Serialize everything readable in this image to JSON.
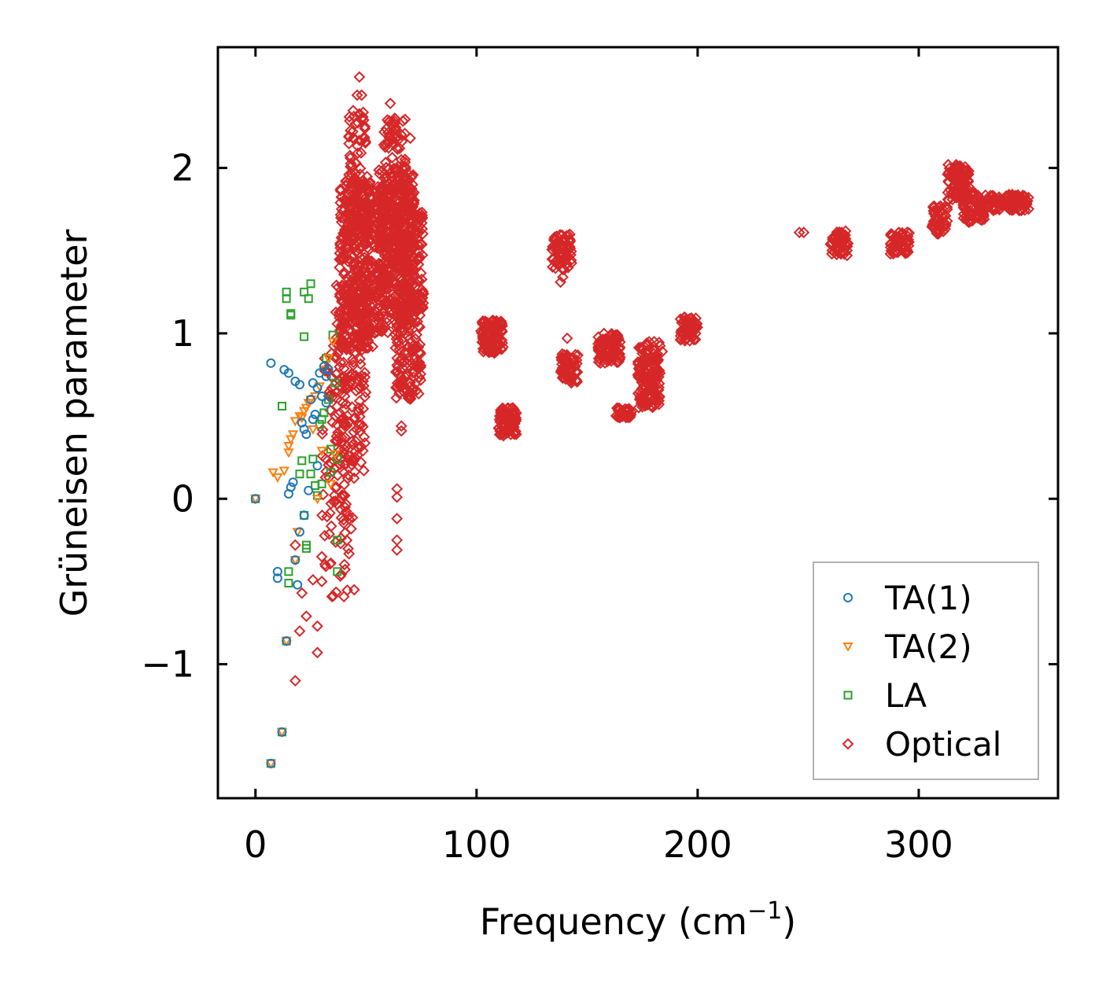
{
  "chart_data": {
    "type": "scatter",
    "title": "",
    "xlabel": "Frequency (cm",
    "xlabel_sup": "−1",
    "xlabel_end": ")",
    "ylabel": "Grüneisen parameter",
    "xlim": [
      -17,
      363
    ],
    "ylim": [
      -1.81,
      2.73
    ],
    "xticks": [
      0,
      100,
      200,
      300
    ],
    "xtick_labels": [
      "0",
      "100",
      "200",
      "300"
    ],
    "yticks": [
      -1,
      0,
      1,
      2
    ],
    "ytick_labels": [
      "−1",
      "0",
      "1",
      "2"
    ],
    "legend_position": "lower-right",
    "series": [
      {
        "name": "TA(1)",
        "marker": "circle",
        "color": "#1f77b4",
        "points": [
          [
            0,
            0
          ],
          [
            7,
            -1.6
          ],
          [
            7,
            0.82
          ],
          [
            10,
            -0.44
          ],
          [
            10,
            -0.48
          ],
          [
            13,
            0.78
          ],
          [
            15,
            0.76
          ],
          [
            15,
            0.03
          ],
          [
            16,
            0.07
          ],
          [
            17,
            0.1
          ],
          [
            18,
            0.71
          ],
          [
            19,
            -0.52
          ],
          [
            20,
            0.69
          ],
          [
            21,
            0.46
          ],
          [
            22,
            0.42
          ],
          [
            23,
            0.39
          ],
          [
            24,
            0.05
          ],
          [
            25,
            0.6
          ],
          [
            26,
            0.7
          ],
          [
            27,
            0.51
          ],
          [
            28,
            0.2
          ],
          [
            29,
            0.76
          ],
          [
            30,
            0.62
          ],
          [
            31,
            0.8
          ],
          [
            32,
            0.58
          ],
          [
            33,
            0.78
          ],
          [
            14,
            -0.86
          ],
          [
            12,
            -1.41
          ],
          [
            18,
            -0.37
          ],
          [
            20,
            -0.2
          ],
          [
            22,
            -0.1
          ],
          [
            26,
            0.48
          ],
          [
            28,
            0.67
          ],
          [
            32,
            0.74
          ]
        ]
      },
      {
        "name": "TA(2)",
        "marker": "triangle-down",
        "color": "#ff7f0e",
        "points": [
          [
            0,
            0
          ],
          [
            7,
            -1.6
          ],
          [
            12,
            -1.41
          ],
          [
            14,
            -0.86
          ],
          [
            8,
            0.16
          ],
          [
            10,
            0.13
          ],
          [
            13,
            0.17
          ],
          [
            15,
            0.32
          ],
          [
            15,
            0.28
          ],
          [
            16,
            0.36
          ],
          [
            17,
            0.39
          ],
          [
            18,
            0.47
          ],
          [
            19,
            -0.2
          ],
          [
            20,
            0.5
          ],
          [
            21,
            0.49
          ],
          [
            22,
            0.53
          ],
          [
            23,
            0.55
          ],
          [
            24,
            0.58
          ],
          [
            25,
            0.6
          ],
          [
            27,
            0.62
          ],
          [
            29,
            0.68
          ],
          [
            31,
            0.78
          ],
          [
            33,
            0.85
          ],
          [
            35,
            0.95
          ],
          [
            36,
            0.27
          ],
          [
            34,
            0.09
          ],
          [
            28,
            0
          ],
          [
            18,
            -0.37
          ],
          [
            30,
            0.29
          ],
          [
            26,
            0.42
          ]
        ]
      },
      {
        "name": "LA",
        "marker": "square",
        "color": "#2ca02c",
        "points": [
          [
            0,
            0
          ],
          [
            7,
            -1.6
          ],
          [
            12,
            -1.41
          ],
          [
            14,
            -0.86
          ],
          [
            12,
            0.56
          ],
          [
            14,
            1.25
          ],
          [
            14,
            1.21
          ],
          [
            15,
            -0.44
          ],
          [
            15,
            -0.51
          ],
          [
            16,
            1.12
          ],
          [
            16,
            1.11
          ],
          [
            20,
            0.15
          ],
          [
            21,
            0.23
          ],
          [
            22,
            0.98
          ],
          [
            22,
            1.25
          ],
          [
            22,
            -0.1
          ],
          [
            23,
            -0.28
          ],
          [
            23,
            -0.3
          ],
          [
            24,
            1.21
          ],
          [
            25,
            1.3
          ],
          [
            26,
            0.24
          ],
          [
            27,
            0.08
          ],
          [
            28,
            0.02
          ],
          [
            29,
            0.45
          ],
          [
            30,
            0.48
          ],
          [
            31,
            0.52
          ],
          [
            32,
            0.85
          ],
          [
            33,
            0.6
          ],
          [
            34,
            0.3
          ],
          [
            35,
            0.99
          ],
          [
            36,
            0.7
          ],
          [
            37,
            0.24
          ],
          [
            37,
            -0.25
          ],
          [
            37,
            -0.44
          ],
          [
            34,
            0.16
          ],
          [
            30,
            0.09
          ],
          [
            25,
            0.15
          ]
        ]
      },
      {
        "name": "Optical",
        "marker": "diamond",
        "color": "#d62728",
        "clusters": [
          {
            "x": [
              30,
              45
            ],
            "y": [
              -0.6,
              0.95
            ],
            "n": 120
          },
          {
            "x": [
              36,
              50
            ],
            "y": [
              0.2,
              1.3
            ],
            "n": 150
          },
          {
            "x": [
              38,
              52
            ],
            "y": [
              0.9,
              1.95
            ],
            "n": 320
          },
          {
            "x": [
              42,
              50
            ],
            "y": [
              1.6,
              2.35
            ],
            "n": 90
          },
          {
            "x": [
              48,
              60
            ],
            "y": [
              1.0,
              1.9
            ],
            "n": 180
          },
          {
            "x": [
              55,
              72
            ],
            "y": [
              1.1,
              2.0
            ],
            "n": 300
          },
          {
            "x": [
              58,
              68
            ],
            "y": [
              1.7,
              2.3
            ],
            "n": 90
          },
          {
            "x": [
              62,
              76
            ],
            "y": [
              1.15,
              1.75
            ],
            "n": 180
          },
          {
            "x": [
              63,
              75
            ],
            "y": [
              0.6,
              1.2
            ],
            "n": 160
          },
          {
            "x": [
              102,
              112
            ],
            "y": [
              0.88,
              1.08
            ],
            "n": 120
          },
          {
            "x": [
              110,
              118
            ],
            "y": [
              0.38,
              0.55
            ],
            "n": 70
          },
          {
            "x": [
              134,
              143
            ],
            "y": [
              1.38,
              1.6
            ],
            "n": 70
          },
          {
            "x": [
              138,
              146
            ],
            "y": [
              0.7,
              0.88
            ],
            "n": 70
          },
          {
            "x": [
              155,
              165
            ],
            "y": [
              0.82,
              1.0
            ],
            "n": 90
          },
          {
            "x": [
              163,
              170
            ],
            "y": [
              0.49,
              0.55
            ],
            "n": 40
          },
          {
            "x": [
              173,
              183
            ],
            "y": [
              0.55,
              0.95
            ],
            "n": 150
          },
          {
            "x": [
              192,
              200
            ],
            "y": [
              0.95,
              1.1
            ],
            "n": 60
          },
          {
            "x": [
              260,
              268
            ],
            "y": [
              1.47,
              1.62
            ],
            "n": 50
          },
          {
            "x": [
              287,
              296
            ],
            "y": [
              1.48,
              1.62
            ],
            "n": 50
          },
          {
            "x": [
              306,
              313
            ],
            "y": [
              1.6,
              1.77
            ],
            "n": 50
          },
          {
            "x": [
              313,
              323
            ],
            "y": [
              1.8,
              2.02
            ],
            "n": 90
          },
          {
            "x": [
              320,
              330
            ],
            "y": [
              1.67,
              1.85
            ],
            "n": 70
          },
          {
            "x": [
              330,
              350
            ],
            "y": [
              1.74,
              1.84
            ],
            "n": 90
          }
        ],
        "points": [
          [
            47,
            2.55
          ],
          [
            46,
            2.44
          ],
          [
            48,
            2.44
          ],
          [
            61,
            2.39
          ],
          [
            63,
            2.3
          ],
          [
            70,
            2.18
          ],
          [
            71,
            1.9
          ],
          [
            60,
            2.15
          ],
          [
            246,
            1.61
          ],
          [
            248,
            1.61
          ],
          [
            138,
            1.31
          ],
          [
            139,
            1.34
          ],
          [
            141,
            0.97
          ],
          [
            184,
            0.89
          ],
          [
            197,
            0.99
          ],
          [
            64,
            0.06
          ],
          [
            64,
            0.01
          ],
          [
            64,
            -0.12
          ],
          [
            64,
            -0.25
          ],
          [
            64,
            -0.31
          ],
          [
            66,
            0.41
          ],
          [
            66,
            0.44
          ],
          [
            28,
            -0.93
          ],
          [
            18,
            -1.1
          ],
          [
            23,
            -0.71
          ],
          [
            20,
            -0.8
          ],
          [
            28,
            -0.77
          ],
          [
            30,
            -0.5
          ],
          [
            26,
            -0.49
          ],
          [
            21,
            -0.57
          ],
          [
            18,
            -0.28
          ],
          [
            30,
            -0.35
          ],
          [
            45,
            0.25
          ],
          [
            49,
            0.17
          ],
          [
            53,
            0.92
          ]
        ]
      }
    ]
  }
}
